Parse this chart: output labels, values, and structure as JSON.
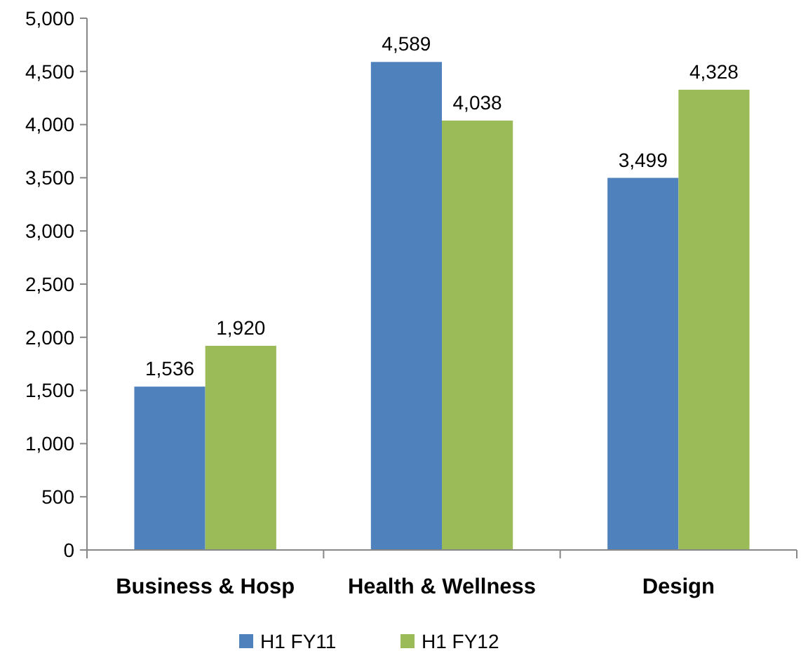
{
  "chart_data": {
    "type": "bar",
    "categories": [
      "Business & Hosp",
      "Health & Wellness",
      "Design"
    ],
    "series": [
      {
        "name": "H1 FY11",
        "color": "#4f81bd",
        "values": [
          1536,
          4589,
          3499
        ]
      },
      {
        "name": "H1 FY12",
        "color": "#9bbb59",
        "values": [
          1920,
          4038,
          4328
        ]
      }
    ],
    "ylim": [
      0,
      5000
    ],
    "yticks": [
      {
        "value": 0,
        "label": "0"
      },
      {
        "value": 500,
        "label": "500"
      },
      {
        "value": 1000,
        "label": "1,000"
      },
      {
        "value": 1500,
        "label": "1,500"
      },
      {
        "value": 2000,
        "label": "2,000"
      },
      {
        "value": 2500,
        "label": "2,500"
      },
      {
        "value": 3000,
        "label": "3,000"
      },
      {
        "value": 3500,
        "label": "3,500"
      },
      {
        "value": 4000,
        "label": "4,000"
      },
      {
        "value": 4500,
        "label": "4,500"
      },
      {
        "value": 5000,
        "label": "5,000"
      }
    ],
    "value_labels": [
      [
        "1,536",
        "4,589",
        "3,499"
      ],
      [
        "1,920",
        "4,038",
        "4,328"
      ]
    ],
    "grid": false,
    "legend": "bottom"
  }
}
